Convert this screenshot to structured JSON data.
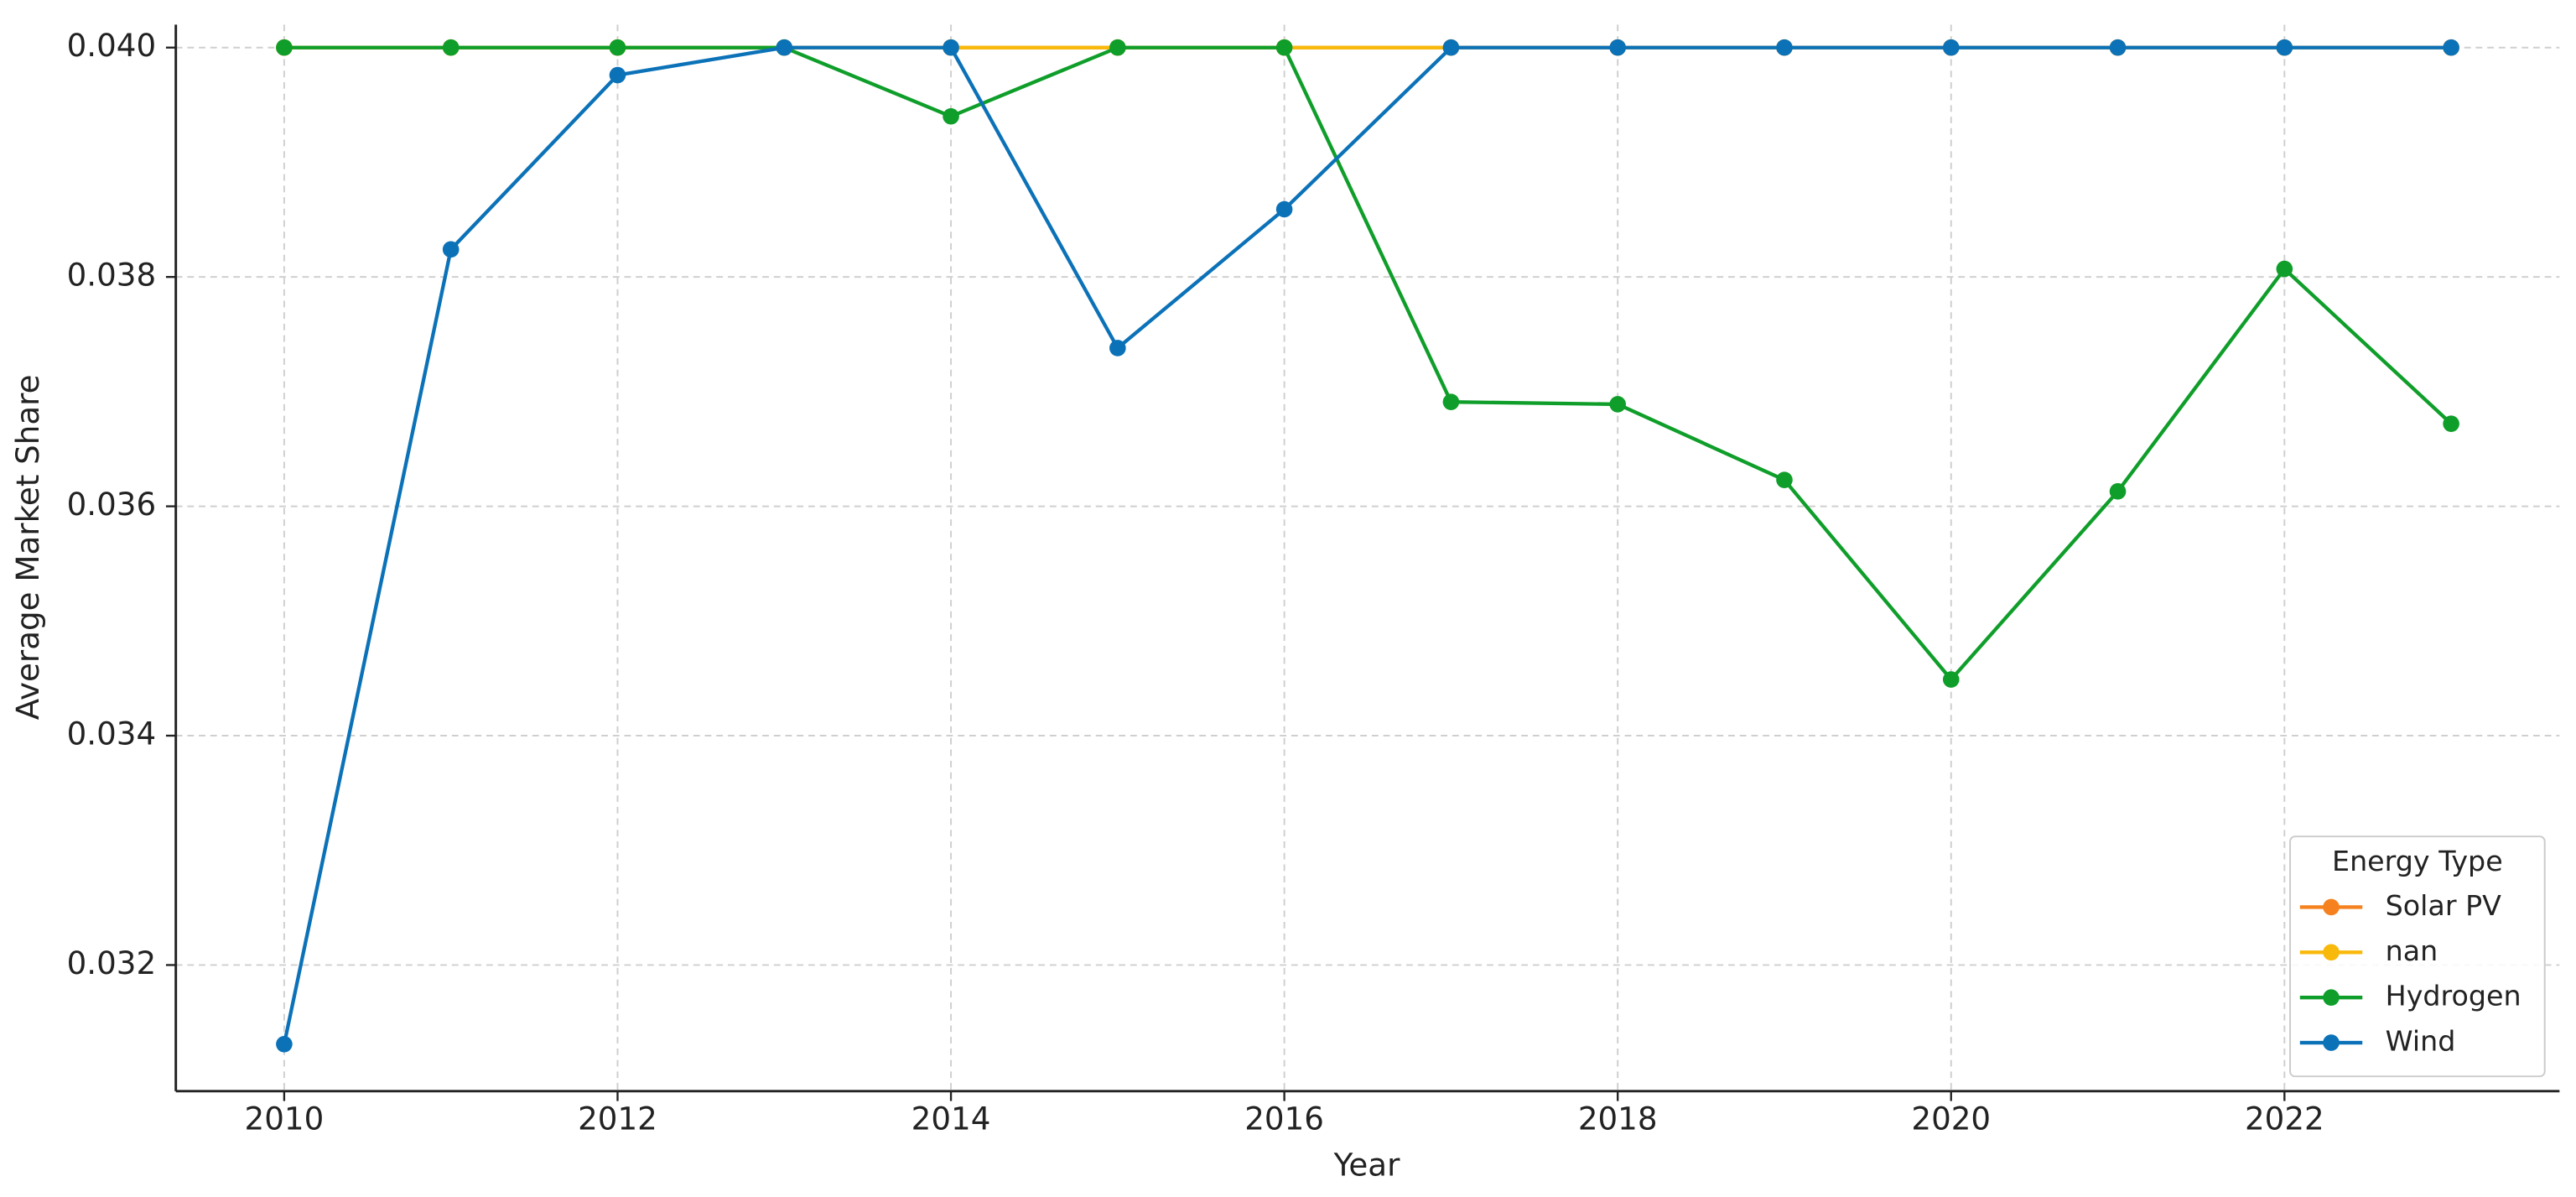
{
  "chart_data": {
    "type": "line",
    "x_label": "Year",
    "y_label": "Average Market Share",
    "x": [
      2010,
      2011,
      2012,
      2013,
      2014,
      2015,
      2016,
      2017,
      2018,
      2019,
      2020,
      2021,
      2022,
      2023
    ],
    "series": [
      {
        "name": "Solar PV",
        "color": "#f5821f",
        "values": [
          0.04,
          0.04,
          0.04,
          0.04,
          0.04,
          0.04,
          0.04,
          0.04,
          0.04,
          0.04,
          0.04,
          0.04,
          0.04,
          0.04
        ]
      },
      {
        "name": "nan",
        "color": "#f9b90b",
        "values": [
          0.04,
          0.04,
          0.04,
          0.04,
          0.04,
          0.04,
          0.04,
          0.04,
          0.04,
          0.04,
          0.04,
          0.04,
          0.04,
          0.04
        ]
      },
      {
        "name": "Hydrogen",
        "color": "#0f9e2a",
        "values": [
          0.04,
          0.04,
          0.04,
          0.04,
          0.0394,
          0.04,
          0.04,
          0.03691,
          0.03689,
          0.03623,
          0.03449,
          0.03613,
          0.03807,
          0.03672
        ]
      },
      {
        "name": "Wind",
        "color": "#0c72b8",
        "values": [
          0.03131,
          0.03824,
          0.03976,
          0.04,
          0.04,
          0.03738,
          0.03859,
          0.04,
          0.04,
          0.04,
          0.04,
          0.04,
          0.04,
          0.04
        ]
      }
    ],
    "xlim": [
      2009.35,
      2023.65
    ],
    "ylim": [
      0.0309,
      0.0402
    ],
    "xticks": [
      2010,
      2012,
      2014,
      2016,
      2018,
      2020,
      2022
    ],
    "yticks": [
      0.032,
      0.034,
      0.036,
      0.038,
      {
        "value": 0.04,
        "label": "0.040"
      }
    ],
    "grid": true,
    "legend_title": "Energy Type",
    "legend_position": "lower right"
  }
}
